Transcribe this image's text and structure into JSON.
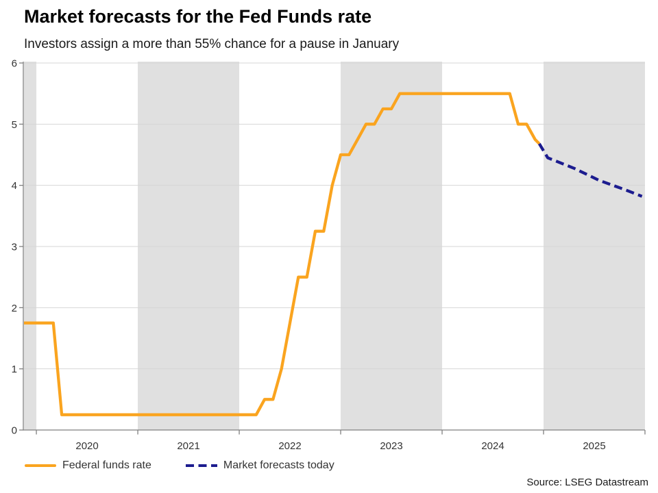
{
  "chart_data": {
    "type": "line",
    "title": "Market forecasts for the Fed Funds rate",
    "subtitle": "Investors assign a more than 55% chance for a pause in January",
    "source": "Source: LSEG Datastream",
    "ylim": [
      0,
      6
    ],
    "y_ticks": [
      0,
      1,
      2,
      3,
      4,
      5,
      6
    ],
    "x_range": [
      2019.878,
      2026
    ],
    "x_tick_positions": [
      2020,
      2021,
      2022,
      2023,
      2024,
      2025,
      2026
    ],
    "x_labels": [
      {
        "text": "2020",
        "center": 2020.5
      },
      {
        "text": "2021",
        "center": 2021.5
      },
      {
        "text": "2022",
        "center": 2022.5
      },
      {
        "text": "2023",
        "center": 2023.5
      },
      {
        "text": "2024",
        "center": 2024.5
      },
      {
        "text": "2025",
        "center": 2025.5
      }
    ],
    "shaded_year_bands": [
      [
        2019.878,
        2020
      ],
      [
        2021,
        2022
      ],
      [
        2023,
        2024
      ],
      [
        2025,
        2026
      ]
    ],
    "grid": true,
    "legend_position": "bottom-left",
    "colors": {
      "band": "#E0E0E0",
      "grid": "#D6D6D6",
      "axis": "#7F7F7F",
      "tick_text": "#333333"
    },
    "series": [
      {
        "name": "Federal funds rate",
        "color": "#FAA41F",
        "line_style": "solid",
        "points": [
          [
            2019.878,
            1.75
          ],
          [
            2020.167,
            1.75
          ],
          [
            2020.25,
            0.25
          ],
          [
            2022.167,
            0.25
          ],
          [
            2022.25,
            0.5
          ],
          [
            2022.333,
            0.5
          ],
          [
            2022.417,
            1.0
          ],
          [
            2022.5,
            1.75
          ],
          [
            2022.583,
            2.5
          ],
          [
            2022.667,
            2.5
          ],
          [
            2022.75,
            3.25
          ],
          [
            2022.833,
            3.25
          ],
          [
            2022.917,
            4.0
          ],
          [
            2023.0,
            4.5
          ],
          [
            2023.083,
            4.5
          ],
          [
            2023.167,
            4.75
          ],
          [
            2023.25,
            5.0
          ],
          [
            2023.333,
            5.0
          ],
          [
            2023.417,
            5.25
          ],
          [
            2023.5,
            5.25
          ],
          [
            2023.583,
            5.5
          ],
          [
            2024.667,
            5.5
          ],
          [
            2024.75,
            5.0
          ],
          [
            2024.833,
            5.0
          ],
          [
            2024.917,
            4.75
          ],
          [
            2024.958,
            4.68
          ]
        ]
      },
      {
        "name": "Market forecasts today",
        "color": "#1C1C8F",
        "line_style": "dashed",
        "points": [
          [
            2024.958,
            4.68
          ],
          [
            2025.042,
            4.45
          ],
          [
            2025.3,
            4.28
          ],
          [
            2025.55,
            4.08
          ],
          [
            2025.8,
            3.93
          ],
          [
            2025.97,
            3.82
          ]
        ]
      }
    ]
  }
}
